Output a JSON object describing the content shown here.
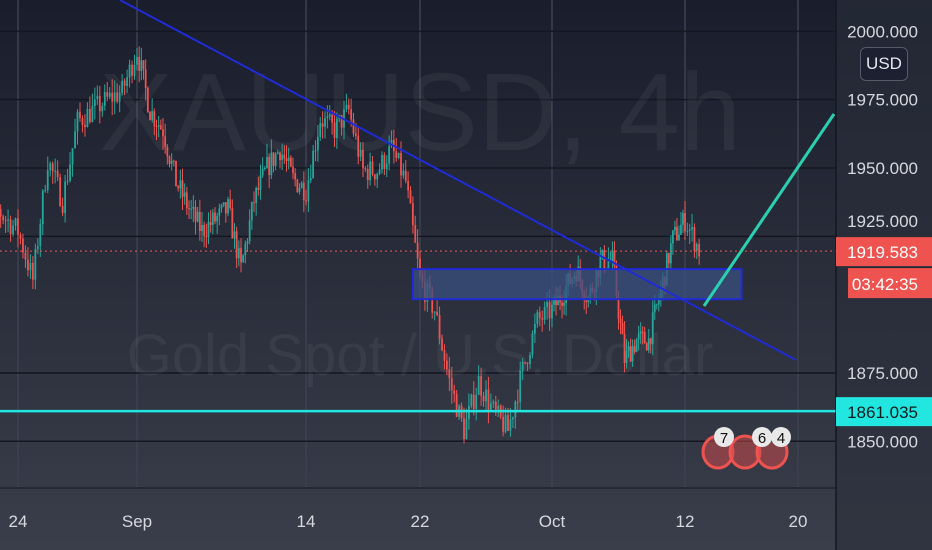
{
  "chart_data": {
    "type": "candlestick",
    "symbol": "XAUUSD",
    "interval": "4h",
    "description": "Gold Spot / U.S. Dollar",
    "currency": "USD",
    "ylim": [
      1838,
      2010
    ],
    "y_ticks": [
      "2000.000",
      "1975.000",
      "1950.000",
      "1925.000",
      "1875.000",
      "1850.000"
    ],
    "x_ticks": [
      "24",
      "Sep",
      "14",
      "22",
      "Oct",
      "12",
      "20"
    ],
    "last_price": "1919.583",
    "countdown": "03:42:35",
    "horizontal_level": "1861.035",
    "colors": {
      "up": "#26a69a",
      "down": "#ef5350",
      "trendline": "#1f2bd6",
      "level": "#22e6e0",
      "projection": "#2bd0b0",
      "zone": "#3b5080"
    },
    "price_path": [
      [
        "Aug 21",
        1945
      ],
      [
        "Aug 22",
        1938
      ],
      [
        "Aug 24",
        1927
      ],
      [
        "Aug 25",
        1909
      ],
      [
        "Aug 26",
        1953
      ],
      [
        "Aug 27",
        1938
      ],
      [
        "Aug 28",
        1967
      ],
      [
        "Aug 30",
        1975
      ],
      [
        "Aug 31",
        1978
      ],
      [
        "Sep 1",
        1993
      ],
      [
        "Sep 2",
        1971
      ],
      [
        "Sep 3",
        1964
      ],
      [
        "Sep 4",
        1945
      ],
      [
        "Sep 5",
        1935
      ],
      [
        "Sep 6",
        1927
      ],
      [
        "Sep 8",
        1935
      ],
      [
        "Sep 9",
        1913
      ],
      [
        "Sep 10",
        1938
      ],
      [
        "Sep 11",
        1950
      ],
      [
        "Sep 12",
        1957
      ],
      [
        "Sep 13",
        1946
      ],
      [
        "Sep 14",
        1942
      ],
      [
        "Sep 15",
        1968
      ],
      [
        "Sep 16",
        1964
      ],
      [
        "Sep 17",
        1971
      ],
      [
        "Sep 18",
        1949
      ],
      [
        "Sep 19",
        1949
      ],
      [
        "Sep 20",
        1957
      ],
      [
        "Sep 21",
        1945
      ],
      [
        "Sep 22",
        1909
      ],
      [
        "Sep 23",
        1898
      ],
      [
        "Sep 24",
        1872
      ],
      [
        "Sep 25",
        1854
      ],
      [
        "Sep 26",
        1872
      ],
      [
        "Sep 27",
        1861
      ],
      [
        "Sep 28",
        1854
      ],
      [
        "Sep 29",
        1876
      ],
      [
        "Sep 30",
        1894
      ],
      [
        "Oct 1",
        1898
      ],
      [
        "Oct 2",
        1905
      ],
      [
        "Oct 3",
        1913
      ],
      [
        "Oct 4",
        1902
      ],
      [
        "Oct 5",
        1916
      ],
      [
        "Oct 6",
        1916
      ],
      [
        "Oct 7",
        1880
      ],
      [
        "Oct 8",
        1887
      ],
      [
        "Oct 9",
        1887
      ],
      [
        "Oct 10",
        1905
      ],
      [
        "Oct 11",
        1924
      ],
      [
        "Oct 12",
        1931
      ],
      [
        "Oct 13",
        1920
      ]
    ],
    "zone": {
      "top": 1913,
      "bottom": 1902,
      "from": "Sep 22",
      "to": "Oct 16"
    },
    "event_badges": [
      "7",
      "6",
      "4"
    ]
  }
}
